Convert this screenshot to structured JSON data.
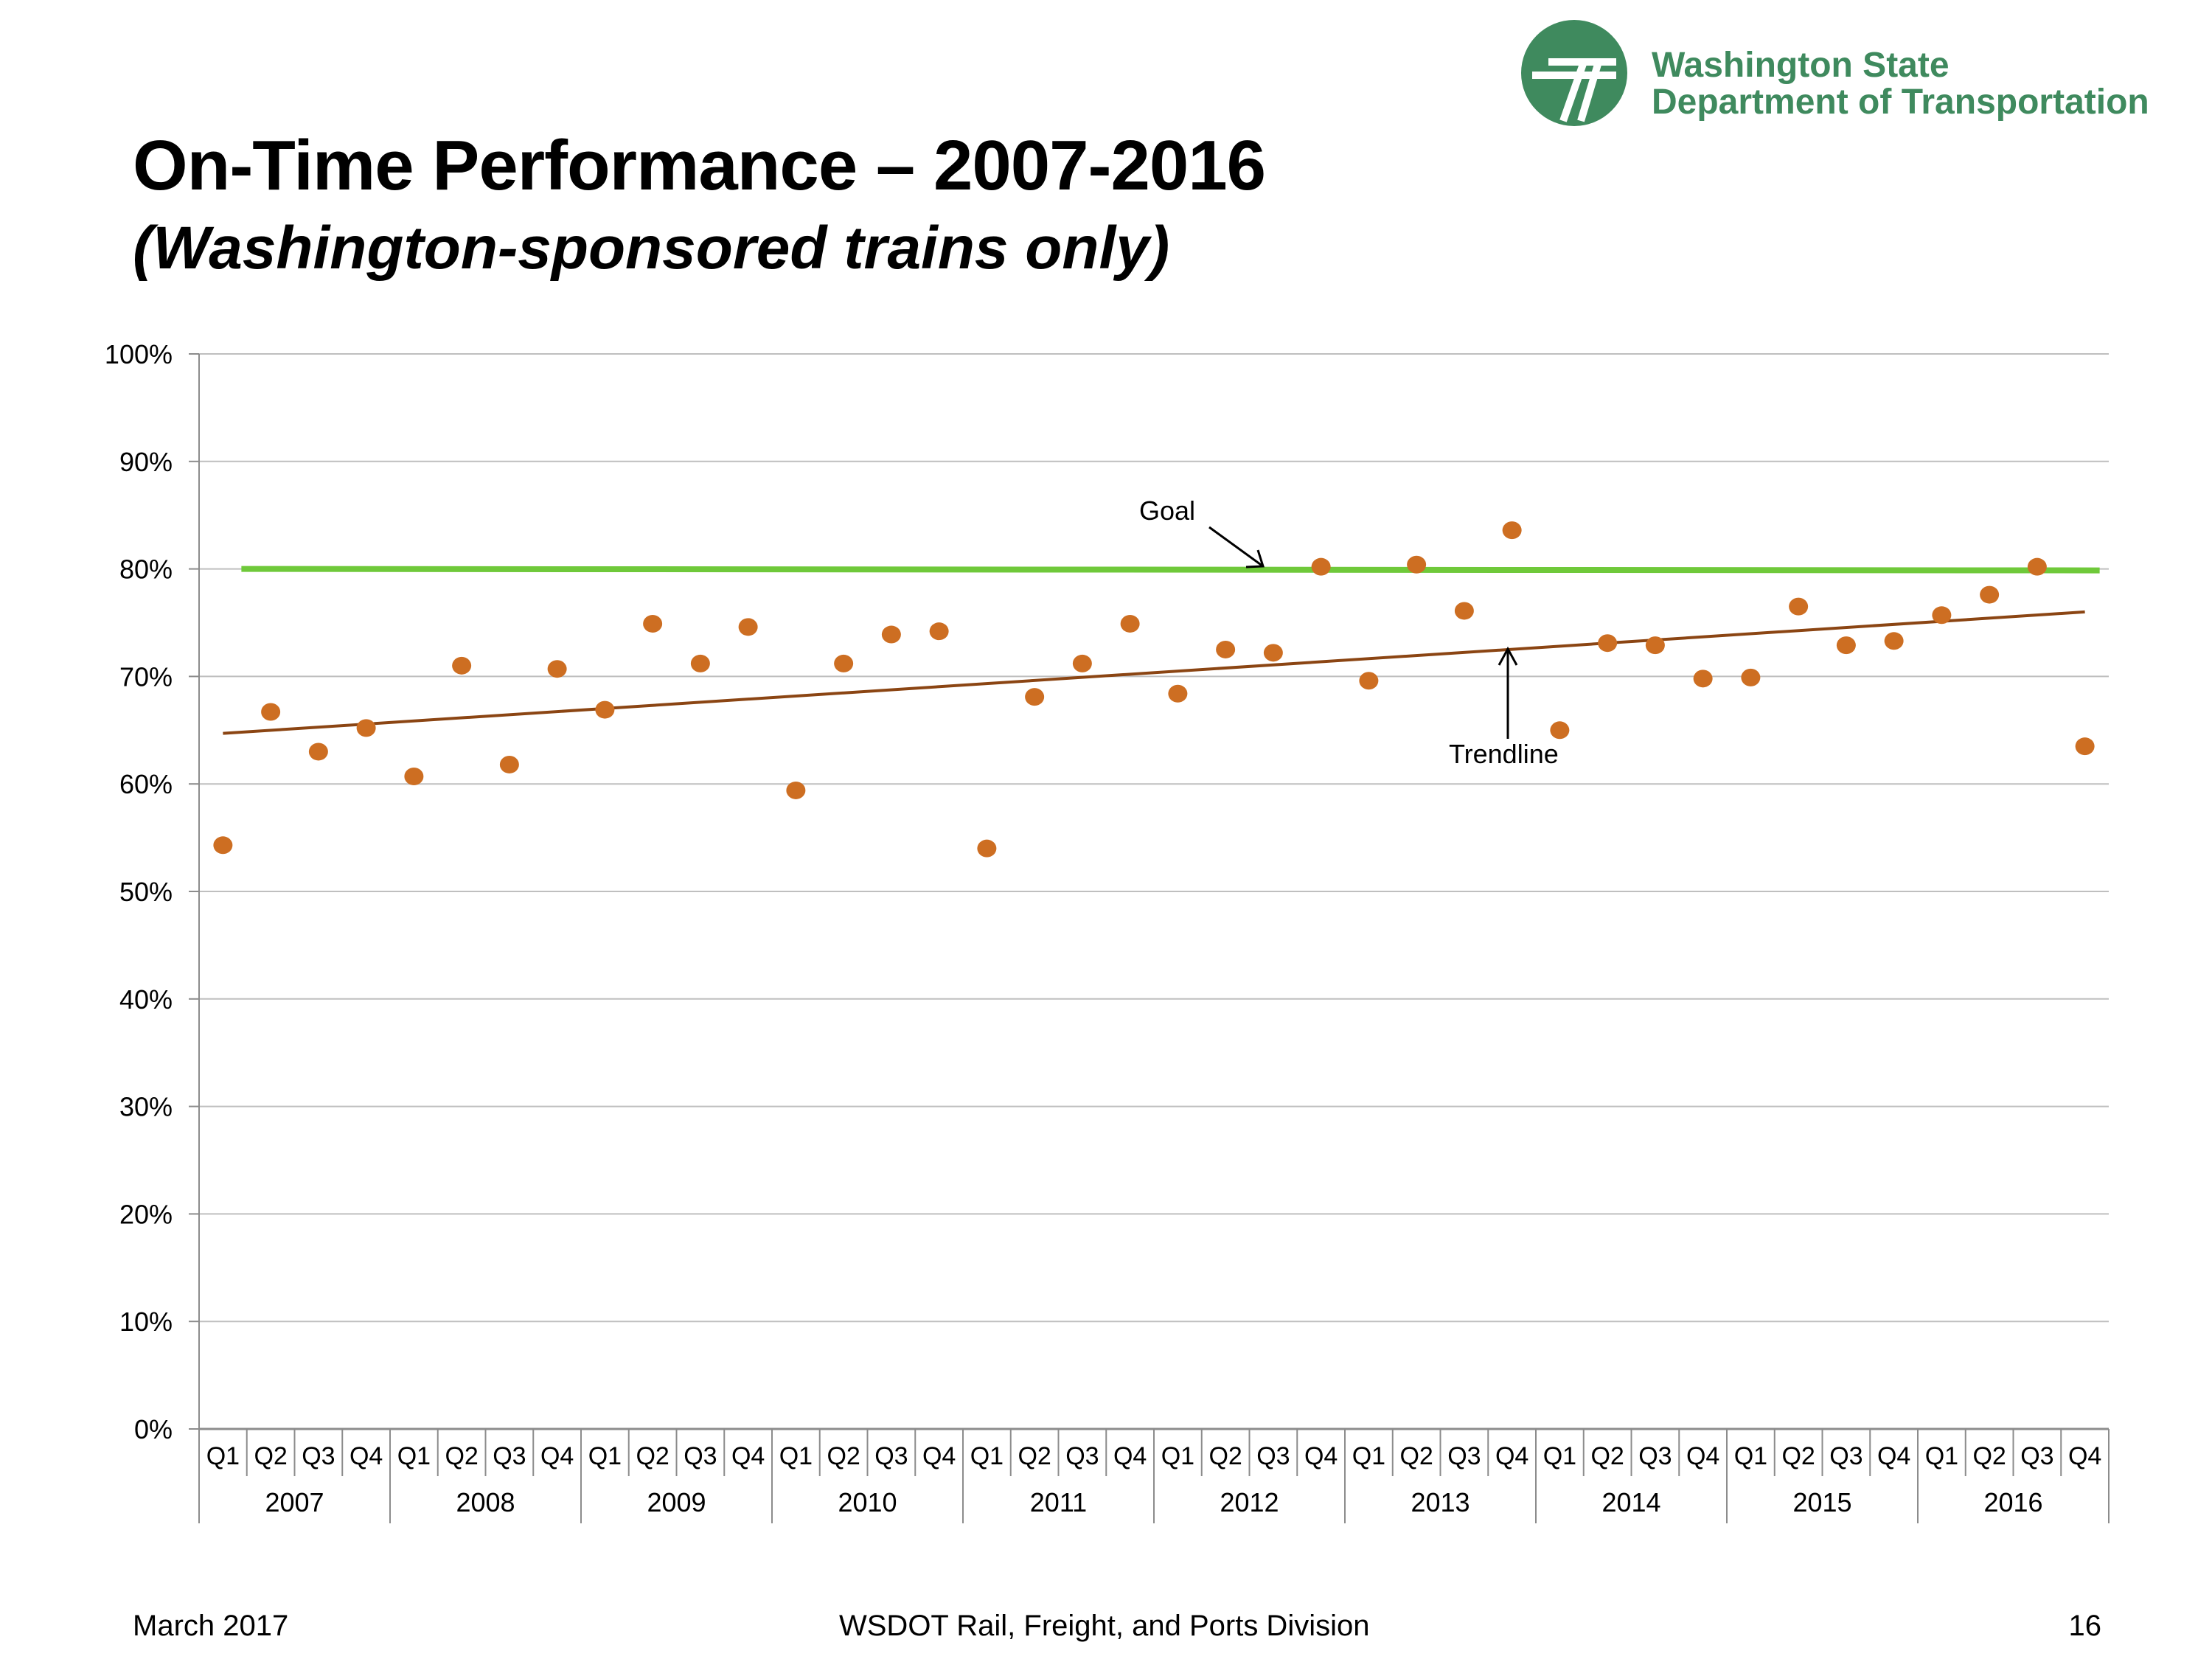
{
  "header": {
    "logo_line1": "Washington State",
    "logo_line2": "Department of Transportation",
    "title": "On-Time Performance – 2007-2016",
    "subtitle": "(Washington-sponsored trains only)"
  },
  "footer": {
    "date": "March 2017",
    "division": "WSDOT Rail, Freight, and Ports Division",
    "page": "16"
  },
  "colors": {
    "points": "#cd6e22",
    "goal": "#6fc93a",
    "trend": "#8b4513",
    "grid": "#bfbfbf",
    "logo": "#3f8a5e"
  },
  "chart_data": {
    "type": "scatter",
    "title": "",
    "xlabel": "",
    "ylabel": "",
    "ylim": [
      0,
      100
    ],
    "y_ticks": [
      "0%",
      "10%",
      "20%",
      "30%",
      "40%",
      "50%",
      "60%",
      "70%",
      "80%",
      "90%",
      "100%"
    ],
    "quarters": [
      "Q1",
      "Q2",
      "Q3",
      "Q4"
    ],
    "years": [
      "2007",
      "2008",
      "2009",
      "2010",
      "2011",
      "2012",
      "2013",
      "2014",
      "2015",
      "2016"
    ],
    "grid": true,
    "series": [
      {
        "values": [
          54.3,
          66.7,
          63,
          65.2,
          60.7,
          71,
          61.8,
          70.7,
          66.9,
          74.9,
          71.2,
          74.6,
          59.4,
          71.2,
          73.9,
          74.2,
          54,
          68.1,
          71.2,
          74.9,
          68.4,
          72.5,
          72.2,
          80.2,
          69.6,
          80.4,
          76.1,
          83.6,
          65,
          73.1,
          72.9,
          69.8,
          69.9,
          76.5,
          72.9,
          73.3,
          75.7,
          77.6,
          80.2,
          63.5
        ]
      }
    ],
    "goal": {
      "label": "Goal",
      "value": 80
    },
    "trendline": {
      "label": "Trendline",
      "start": 64.7,
      "end": 76
    }
  }
}
